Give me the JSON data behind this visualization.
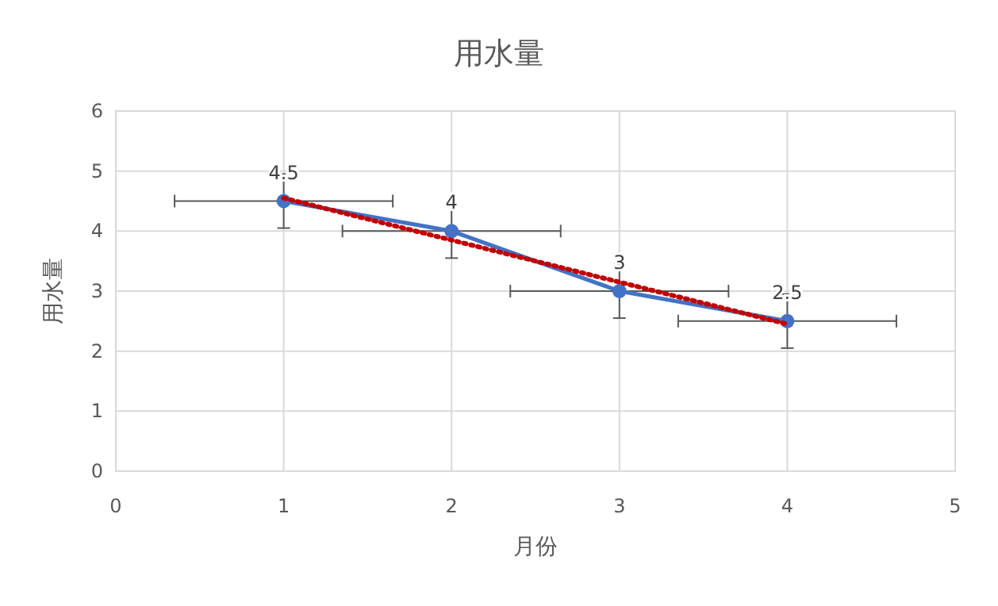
{
  "chart_data": {
    "type": "line",
    "title": "用水量",
    "xlabel": "月份",
    "ylabel": "用水量",
    "xlim": [
      0,
      5
    ],
    "xticks": [
      0,
      1,
      2,
      3,
      4,
      5
    ],
    "ylim": [
      0,
      6
    ],
    "yticks": [
      0,
      1,
      2,
      3,
      4,
      5,
      6
    ],
    "grid": true,
    "series": [
      {
        "color": "#4472c4",
        "x": [
          1,
          2,
          3,
          4
        ],
        "values": [
          4.5,
          4,
          3,
          2.5
        ],
        "errors": [
          0.45,
          0.45,
          0.45,
          0.45
        ],
        "xerrors": [
          0.65,
          0.65,
          0.65,
          0.65
        ],
        "value_labels": [
          "4.5",
          "4",
          "3",
          "2.5"
        ],
        "marker": "circle",
        "line_style": "solid"
      },
      {
        "color": "#c00000",
        "x": [
          1,
          4
        ],
        "values": [
          4.55,
          2.45
        ],
        "marker": "none",
        "line_style": "dotted"
      }
    ]
  }
}
